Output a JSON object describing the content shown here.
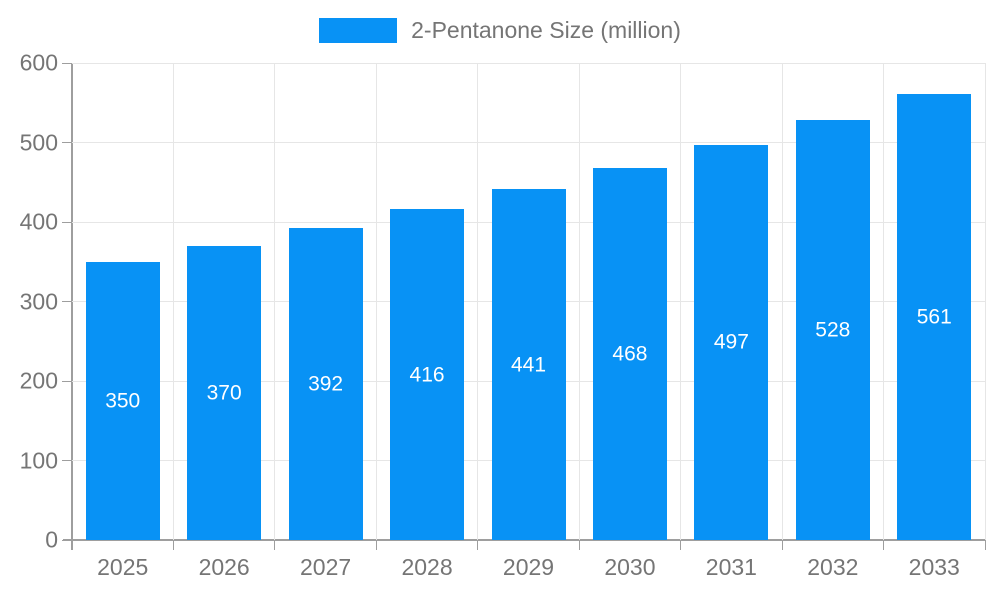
{
  "chart_data": {
    "type": "bar",
    "series_name": "2-Pentanone Size (million)",
    "categories": [
      "2025",
      "2026",
      "2027",
      "2028",
      "2029",
      "2030",
      "2031",
      "2032",
      "2033"
    ],
    "values": [
      350,
      370,
      392,
      416,
      441,
      468,
      497,
      528,
      561
    ],
    "title": "",
    "xlabel": "",
    "ylabel": "",
    "ylim": [
      0,
      600
    ],
    "ytick_step": 100,
    "ytick_labels": [
      "0",
      "100",
      "200",
      "300",
      "400",
      "500",
      "600"
    ],
    "grid": true,
    "legend_position": "top-center",
    "bar_labels_shown": true
  },
  "colors": {
    "bar_fill": "#0892f5",
    "bar_value_label": "#ffffff",
    "axis_line": "#9e9e9e",
    "gridline": "#e6e6e6",
    "tick_label": "#757575",
    "legend_text": "#757575",
    "background": "#ffffff"
  }
}
